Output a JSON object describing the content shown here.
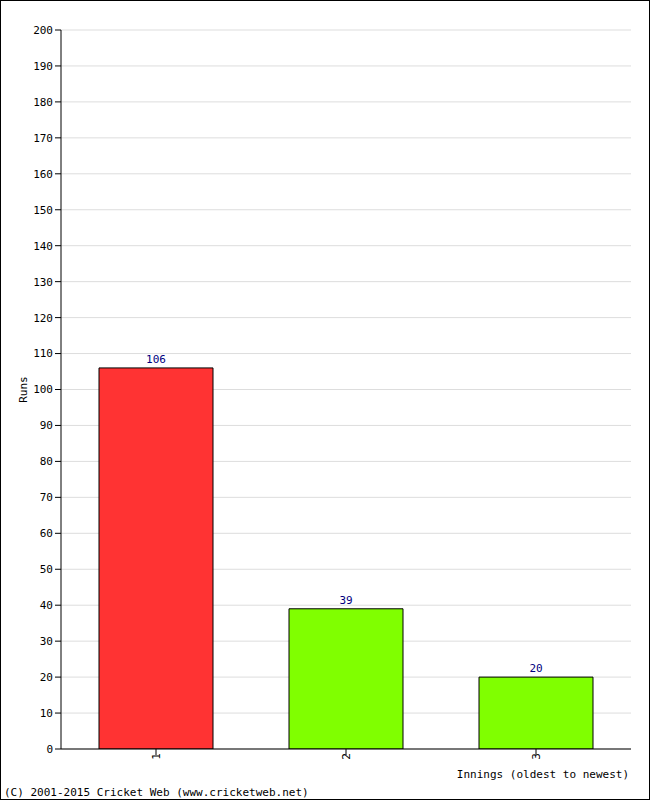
{
  "chart_data": {
    "type": "bar",
    "categories": [
      "1",
      "2",
      "3"
    ],
    "values": [
      106,
      39,
      20
    ],
    "colors": [
      "#ff3333",
      "#80ff00",
      "#80ff00"
    ],
    "x_label": "Innings (oldest to newest)",
    "y_label": "Runs",
    "annotation": "(C) 2001-2015 Cricket Web (www.cricketweb.net)",
    "ylim": [
      0,
      200
    ],
    "yticks": [
      0,
      10,
      20,
      30,
      40,
      50,
      60,
      70,
      80,
      90,
      100,
      110,
      120,
      130,
      140,
      150,
      160,
      170,
      180,
      190,
      200
    ],
    "grid": true,
    "data_labels": true
  }
}
